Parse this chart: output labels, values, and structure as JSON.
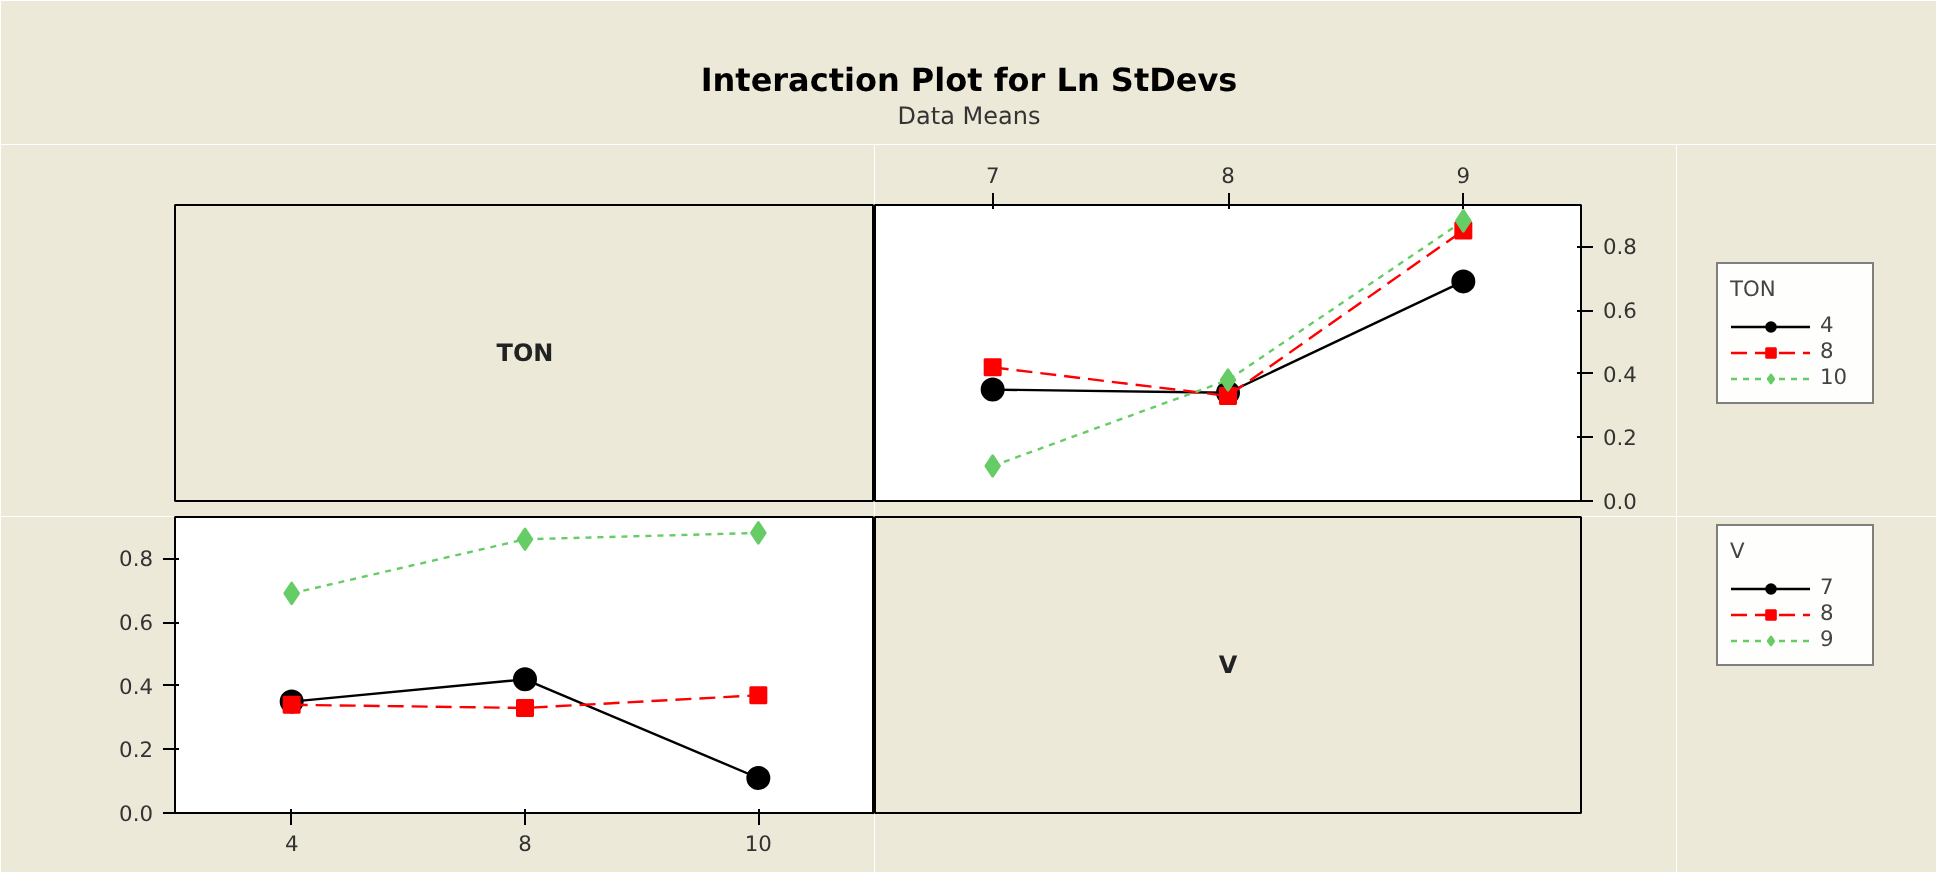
{
  "chart_data": [
    {
      "type": "other",
      "title": "Interaction Plot for Ln StDevs",
      "subtitle": "Data Means",
      "annotations": [
        "TON"
      ]
    },
    {
      "type": "line",
      "categories": [
        "7",
        "8",
        "9"
      ],
      "ylim": [
        0,
        0.93
      ],
      "yticks": [
        {
          "value": 0,
          "label": "0.0"
        },
        0.2,
        0.4,
        0.6,
        0.8
      ],
      "grid": false,
      "legend": "right",
      "legend_title": "TON",
      "series": [
        {
          "name": "4",
          "color": "#000000",
          "marker": "circle",
          "line_style": "solid",
          "values": [
            0.35,
            0.34,
            0.69
          ]
        },
        {
          "name": "8",
          "color": "#ff0000",
          "marker": "square",
          "line_style": "dashed",
          "values": [
            0.42,
            0.33,
            0.85
          ]
        },
        {
          "name": "10",
          "color": "#66cc66",
          "marker": "diamond",
          "line_style": "dotted",
          "values": [
            0.11,
            0.38,
            0.88
          ]
        }
      ]
    },
    {
      "type": "line",
      "categories": [
        "4",
        "8",
        "10"
      ],
      "ylim": [
        0,
        0.93
      ],
      "yticks": [
        {
          "value": 0,
          "label": "0.0"
        },
        0.2,
        0.4,
        0.6,
        0.8
      ],
      "grid": false,
      "legend": "right",
      "legend_title": "V",
      "series": [
        {
          "name": "7",
          "color": "#000000",
          "marker": "circle",
          "line_style": "solid",
          "values": [
            0.35,
            0.42,
            0.11
          ]
        },
        {
          "name": "8",
          "color": "#ff0000",
          "marker": "square",
          "line_style": "dashed",
          "values": [
            0.34,
            0.33,
            0.37
          ]
        },
        {
          "name": "9",
          "color": "#66cc66",
          "marker": "diamond",
          "line_style": "dotted",
          "values": [
            0.69,
            0.86,
            0.88
          ]
        }
      ]
    },
    {
      "type": "other",
      "annotations": [
        "V"
      ]
    }
  ]
}
